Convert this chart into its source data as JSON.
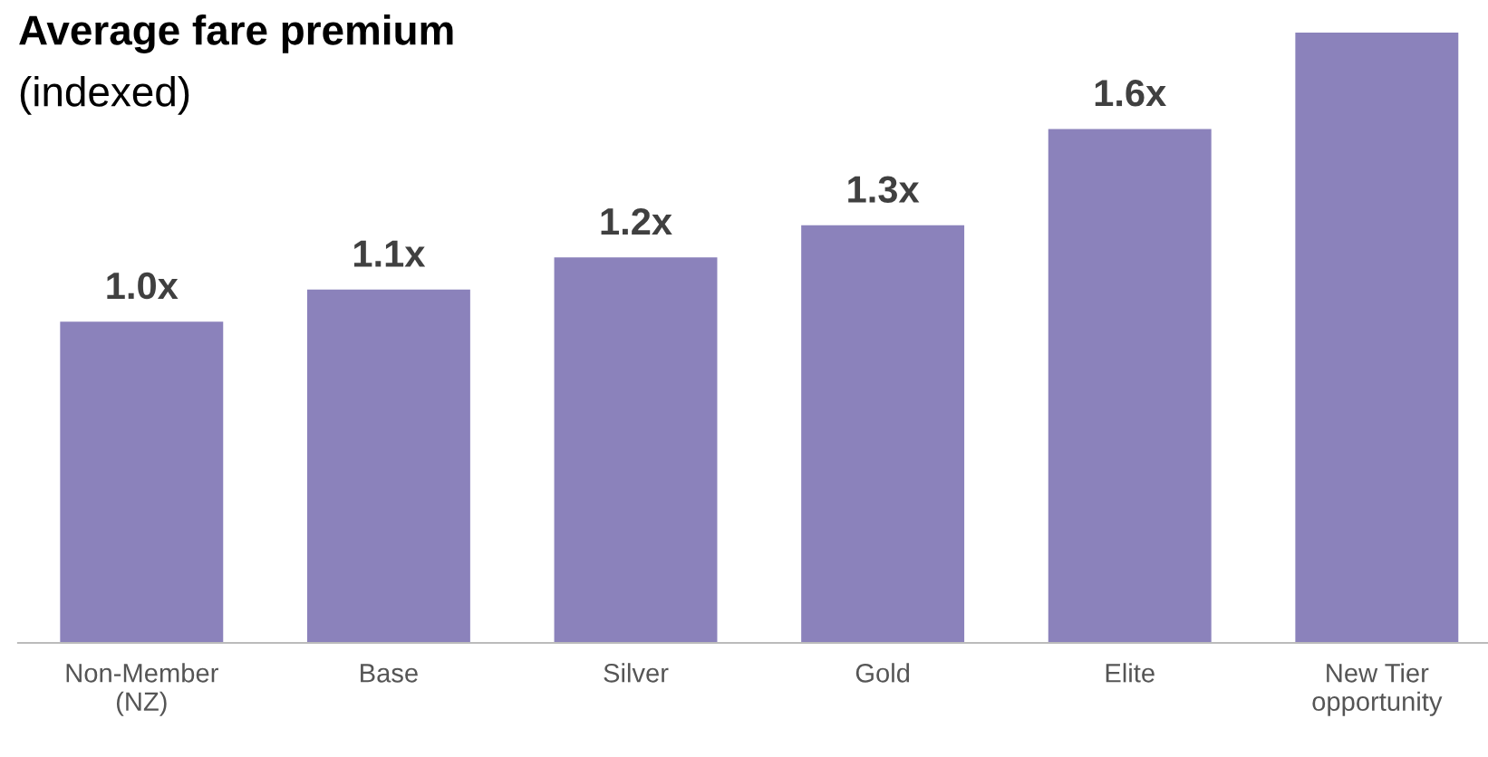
{
  "chart_data": {
    "type": "bar",
    "title": "Average fare premium",
    "subtitle": "(indexed)",
    "categories": [
      "Non-Member\n(NZ)",
      "Base",
      "Silver",
      "Gold",
      "Elite",
      "New Tier\nopportunity"
    ],
    "values": [
      1.0,
      1.1,
      1.2,
      1.3,
      1.6,
      1.9
    ],
    "value_labels": [
      "1.0x",
      "1.1x",
      "1.2x",
      "1.3x",
      "1.6x",
      null
    ],
    "color": "#8b82bb",
    "grid": false,
    "legend": false
  }
}
